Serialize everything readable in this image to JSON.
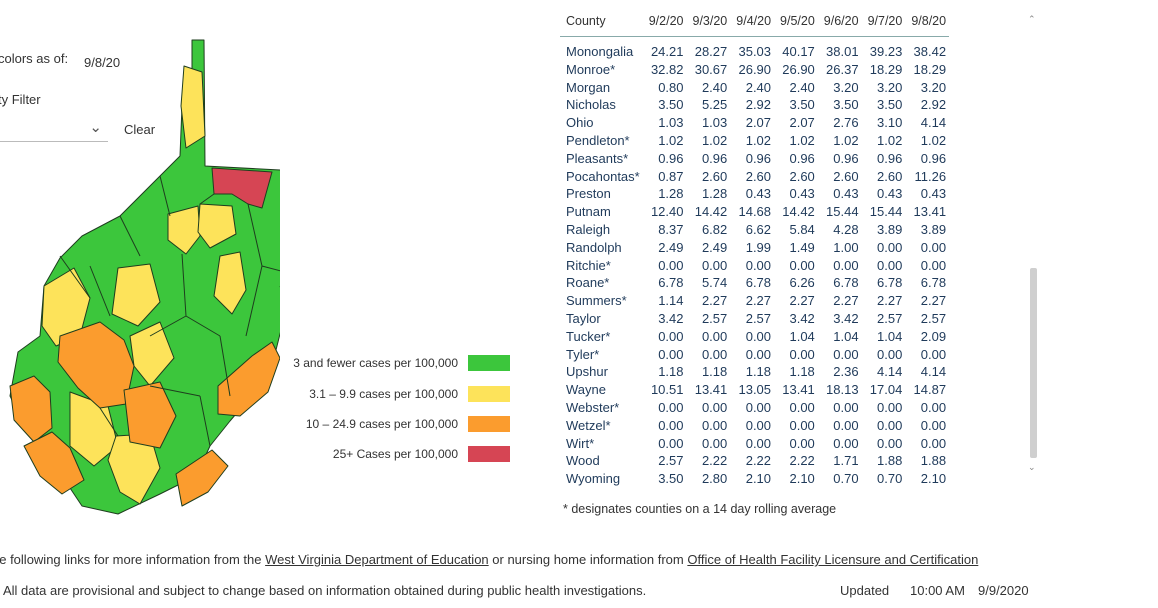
{
  "filters": {
    "colors_label": "colors as of:",
    "colors_date": "9/8/20",
    "filter_label": "ty Filter",
    "clear_label": "Clear",
    "dropdown_icon": "chevron-down-icon"
  },
  "legend": [
    {
      "label": "3 and fewer cases per 100,000",
      "color": "#3cc63c"
    },
    {
      "label": "3.1 – 9.9 cases per 100,000",
      "color": "#fde35a"
    },
    {
      "label": "10 – 24.9 cases per 100,000",
      "color": "#fb9c2e"
    },
    {
      "label": "25+ Cases per 100,000",
      "color": "#d64554"
    }
  ],
  "table": {
    "headers": [
      "County",
      "9/2/20",
      "9/3/20",
      "9/4/20",
      "9/5/20",
      "9/6/20",
      "9/7/20",
      "9/8/20"
    ],
    "rows": [
      [
        "Monongalia",
        "24.21",
        "28.27",
        "35.03",
        "40.17",
        "38.01",
        "39.23",
        "38.42"
      ],
      [
        "Monroe*",
        "32.82",
        "30.67",
        "26.90",
        "26.90",
        "26.37",
        "18.29",
        "18.29"
      ],
      [
        "Morgan",
        "0.80",
        "2.40",
        "2.40",
        "2.40",
        "3.20",
        "3.20",
        "3.20"
      ],
      [
        "Nicholas",
        "3.50",
        "5.25",
        "2.92",
        "3.50",
        "3.50",
        "3.50",
        "2.92"
      ],
      [
        "Ohio",
        "1.03",
        "1.03",
        "2.07",
        "2.07",
        "2.76",
        "3.10",
        "4.14"
      ],
      [
        "Pendleton*",
        "1.02",
        "1.02",
        "1.02",
        "1.02",
        "1.02",
        "1.02",
        "1.02"
      ],
      [
        "Pleasants*",
        "0.96",
        "0.96",
        "0.96",
        "0.96",
        "0.96",
        "0.96",
        "0.96"
      ],
      [
        "Pocahontas*",
        "0.87",
        "2.60",
        "2.60",
        "2.60",
        "2.60",
        "2.60",
        "11.26"
      ],
      [
        "Preston",
        "1.28",
        "1.28",
        "0.43",
        "0.43",
        "0.43",
        "0.43",
        "0.43"
      ],
      [
        "Putnam",
        "12.40",
        "14.42",
        "14.68",
        "14.42",
        "15.44",
        "15.44",
        "13.41"
      ],
      [
        "Raleigh",
        "8.37",
        "6.82",
        "6.62",
        "5.84",
        "4.28",
        "3.89",
        "3.89"
      ],
      [
        "Randolph",
        "2.49",
        "2.49",
        "1.99",
        "1.49",
        "1.00",
        "0.00",
        "0.00"
      ],
      [
        "Ritchie*",
        "0.00",
        "0.00",
        "0.00",
        "0.00",
        "0.00",
        "0.00",
        "0.00"
      ],
      [
        "Roane*",
        "6.78",
        "5.74",
        "6.78",
        "6.26",
        "6.78",
        "6.78",
        "6.78"
      ],
      [
        "Summers*",
        "1.14",
        "2.27",
        "2.27",
        "2.27",
        "2.27",
        "2.27",
        "2.27"
      ],
      [
        "Taylor",
        "3.42",
        "2.57",
        "2.57",
        "3.42",
        "3.42",
        "2.57",
        "2.57"
      ],
      [
        "Tucker*",
        "0.00",
        "0.00",
        "0.00",
        "1.04",
        "1.04",
        "1.04",
        "2.09"
      ],
      [
        "Tyler*",
        "0.00",
        "0.00",
        "0.00",
        "0.00",
        "0.00",
        "0.00",
        "0.00"
      ],
      [
        "Upshur",
        "1.18",
        "1.18",
        "1.18",
        "1.18",
        "2.36",
        "4.14",
        "4.14"
      ],
      [
        "Wayne",
        "10.51",
        "13.41",
        "13.05",
        "13.41",
        "18.13",
        "17.04",
        "14.87"
      ],
      [
        "Webster*",
        "0.00",
        "0.00",
        "0.00",
        "0.00",
        "0.00",
        "0.00",
        "0.00"
      ],
      [
        "Wetzel*",
        "0.00",
        "0.00",
        "0.00",
        "0.00",
        "0.00",
        "0.00",
        "0.00"
      ],
      [
        "Wirt*",
        "0.00",
        "0.00",
        "0.00",
        "0.00",
        "0.00",
        "0.00",
        "0.00"
      ],
      [
        "Wood",
        "2.57",
        "2.22",
        "2.22",
        "2.22",
        "1.71",
        "1.88",
        "1.88"
      ],
      [
        "Wyoming",
        "3.50",
        "2.80",
        "2.10",
        "2.10",
        "0.70",
        "0.70",
        "2.10"
      ]
    ],
    "footnote": "* designates counties on a 14 day rolling average"
  },
  "links": {
    "prefix": "he following links for more information from the ",
    "doe_link": "West Virginia Department of Education",
    "middle": " or nursing home information from ",
    "ohflac_link": "Office of Health Facility Licensure and Certification"
  },
  "footer": {
    "disclaimer": "All data are provisional and subject to change based on information obtained during public health investigations.",
    "updated_label": "Updated",
    "updated_time": "10:00 AM",
    "updated_date": "9/9/2020"
  },
  "colors": {
    "green": "#3cc63c",
    "yellow": "#fde35a",
    "orange": "#fb9c2e",
    "red": "#d64554"
  }
}
